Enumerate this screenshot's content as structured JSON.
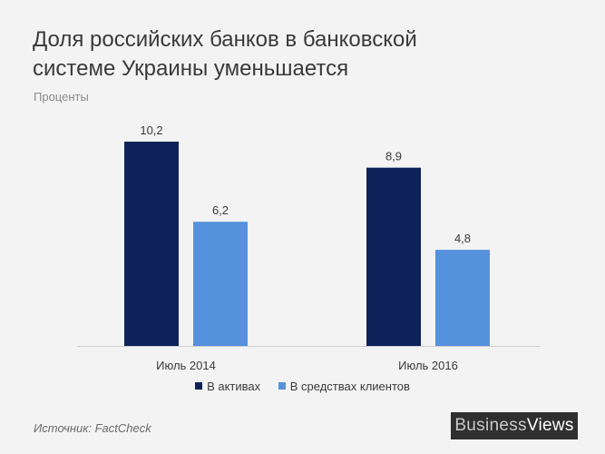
{
  "title_line1": "Доля российских банков в банковской",
  "title_line2": "системе Украины уменьшается",
  "subtitle": "Проценты",
  "source": "Источник: FactCheck",
  "logo": {
    "part1": "Business",
    "part2": "Views"
  },
  "chart_data": {
    "type": "bar",
    "title": "Доля российских банков в банковской системе Украины уменьшается",
    "ylabel": "Проценты",
    "xlabel": "",
    "categories": [
      "Июль 2014",
      "Июль 2016"
    ],
    "series": [
      {
        "name": "В активах",
        "color": "#0e2259",
        "values": [
          10.2,
          8.9
        ],
        "labels": [
          "10,2",
          "8,9"
        ]
      },
      {
        "name": "В средствах клиентов",
        "color": "#5591dc",
        "values": [
          6.2,
          4.8
        ],
        "labels": [
          "6,2",
          "4,8"
        ]
      }
    ],
    "ylim": [
      0,
      10.2
    ],
    "grid": false,
    "legend": "bottom"
  }
}
